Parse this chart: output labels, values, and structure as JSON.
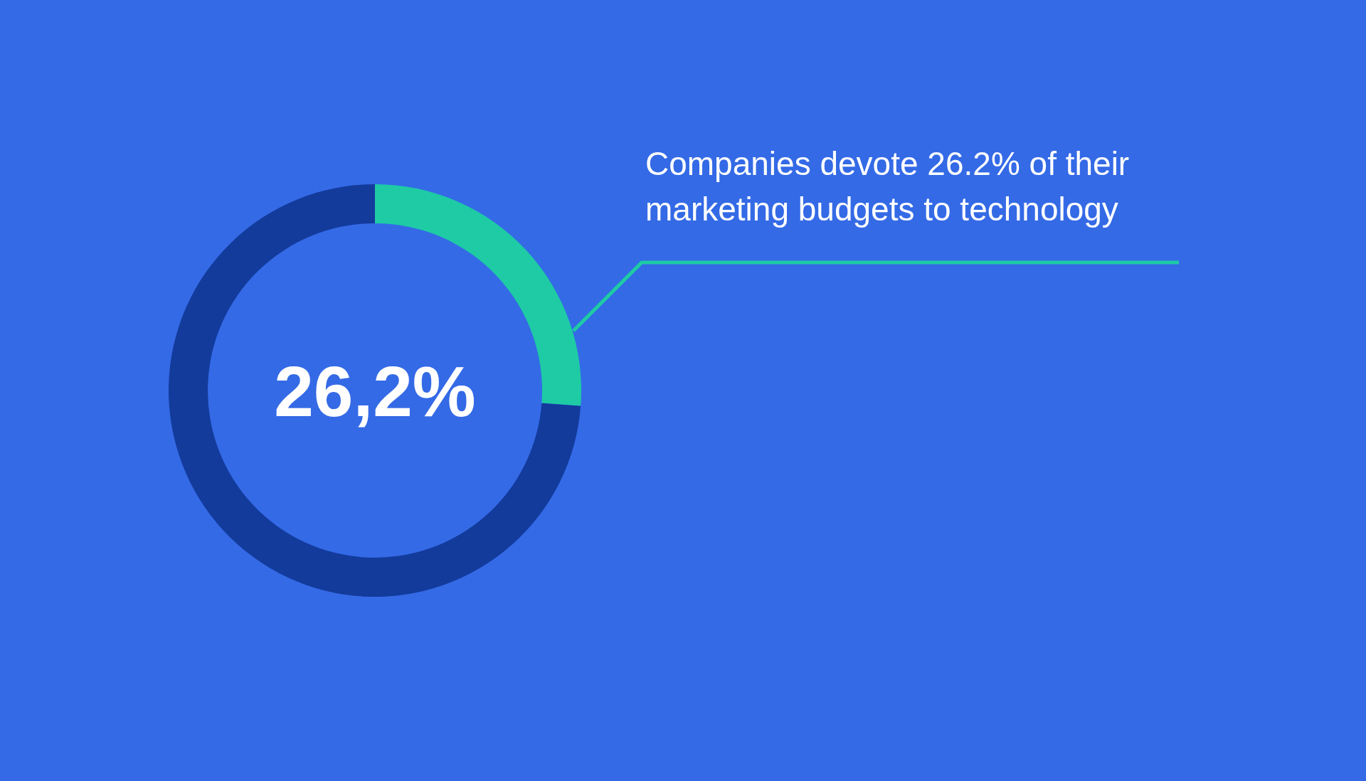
{
  "chart_data": {
    "type": "donut",
    "categories": [
      null,
      null
    ],
    "values": [
      26.2,
      73.8
    ],
    "colors": [
      "#1ecba5",
      "#133b9c"
    ],
    "annotations": [
      "26,2%",
      "Companies devote 26.2% of their marketing budgets to technology"
    ]
  }
}
